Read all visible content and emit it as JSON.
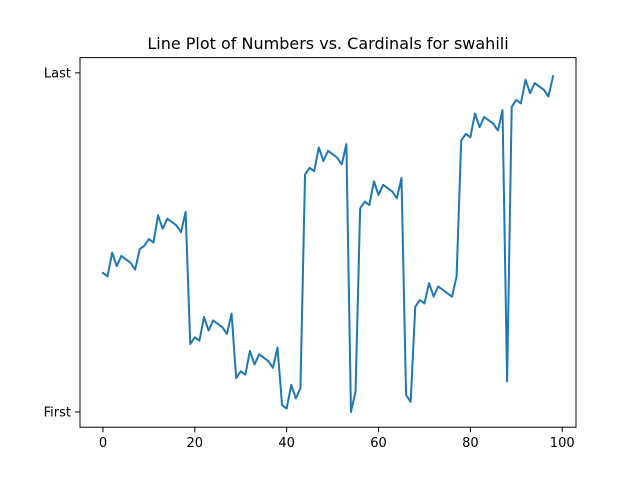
{
  "chart_data": {
    "type": "line",
    "title": "Line Plot of Numbers vs. Cardinals for swahili",
    "xlabel": "",
    "ylabel": "",
    "xlim": [
      -5,
      103
    ],
    "ylim": [
      -0.045,
      1.045
    ],
    "x_ticks": [
      0,
      20,
      40,
      60,
      80,
      100
    ],
    "x_tick_labels": [
      "0",
      "20",
      "40",
      "60",
      "80",
      "100"
    ],
    "y_ticks": [
      0,
      1
    ],
    "y_tick_labels": [
      "First",
      "Last"
    ],
    "grid": false,
    "legend": "none",
    "series": [
      {
        "color": "#1f77b4",
        "x": [
          0,
          1,
          2,
          3,
          4,
          5,
          6,
          7,
          8,
          9,
          10,
          11,
          12,
          13,
          14,
          15,
          16,
          17,
          18,
          19,
          20,
          21,
          22,
          23,
          24,
          25,
          26,
          27,
          28,
          29,
          30,
          31,
          32,
          33,
          34,
          35,
          36,
          37,
          38,
          39,
          40,
          41,
          42,
          43,
          44,
          45,
          46,
          47,
          48,
          49,
          50,
          51,
          52,
          53,
          54,
          55,
          56,
          57,
          58,
          59,
          60,
          61,
          62,
          63,
          64,
          65,
          66,
          67,
          68,
          69,
          70,
          71,
          72,
          73,
          74,
          75,
          76,
          77,
          78,
          79,
          80,
          81,
          82,
          83,
          84,
          85,
          86,
          87,
          88,
          89,
          90,
          91,
          92,
          93,
          94,
          95,
          96,
          97,
          98
        ],
        "values": [
          0.41,
          0.4,
          0.47,
          0.43,
          0.46,
          0.45,
          0.44,
          0.42,
          0.48,
          0.49,
          0.51,
          0.5,
          0.58,
          0.54,
          0.57,
          0.56,
          0.55,
          0.53,
          0.59,
          0.2,
          0.22,
          0.21,
          0.28,
          0.24,
          0.27,
          0.26,
          0.25,
          0.23,
          0.29,
          0.1,
          0.12,
          0.11,
          0.18,
          0.14,
          0.17,
          0.16,
          0.15,
          0.13,
          0.19,
          0.02,
          0.01,
          0.08,
          0.04,
          0.07,
          0.7,
          0.72,
          0.71,
          0.78,
          0.74,
          0.77,
          0.76,
          0.75,
          0.73,
          0.79,
          0.0,
          0.06,
          0.6,
          0.62,
          0.61,
          0.68,
          0.64,
          0.67,
          0.66,
          0.65,
          0.63,
          0.69,
          0.05,
          0.03,
          0.31,
          0.33,
          0.32,
          0.38,
          0.34,
          0.37,
          0.36,
          0.35,
          0.34,
          0.4,
          0.8,
          0.82,
          0.81,
          0.88,
          0.84,
          0.87,
          0.86,
          0.85,
          0.83,
          0.89,
          0.09,
          0.9,
          0.92,
          0.91,
          0.98,
          0.94,
          0.97,
          0.96,
          0.95,
          0.93,
          0.99
        ]
      }
    ]
  }
}
